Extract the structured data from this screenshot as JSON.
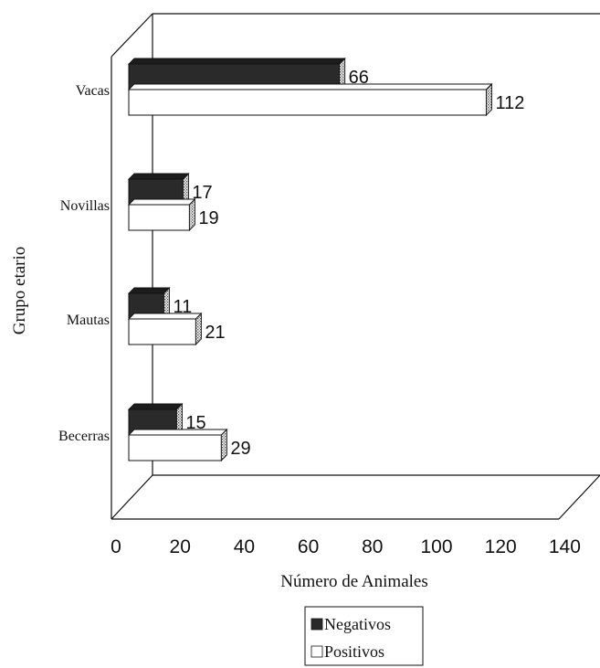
{
  "chart_data": {
    "type": "bar",
    "orientation": "horizontal",
    "style": "3d",
    "categories": [
      "Vacas",
      "Novillas",
      "Mautas",
      "Becerras"
    ],
    "series": [
      {
        "name": "Negativos",
        "values": [
          66,
          17,
          11,
          15
        ],
        "color": "#2a2a2a"
      },
      {
        "name": "Positivos",
        "values": [
          112,
          19,
          21,
          29
        ],
        "color": "#ffffff"
      }
    ],
    "xlabel": "Número de Animales",
    "ylabel": "Grupo etario",
    "xlim": [
      0,
      140
    ],
    "xticks": [
      "0",
      "20",
      "40",
      "60",
      "80",
      "100",
      "120",
      "140"
    ],
    "grid": false,
    "legend_position": "bottom-center"
  }
}
